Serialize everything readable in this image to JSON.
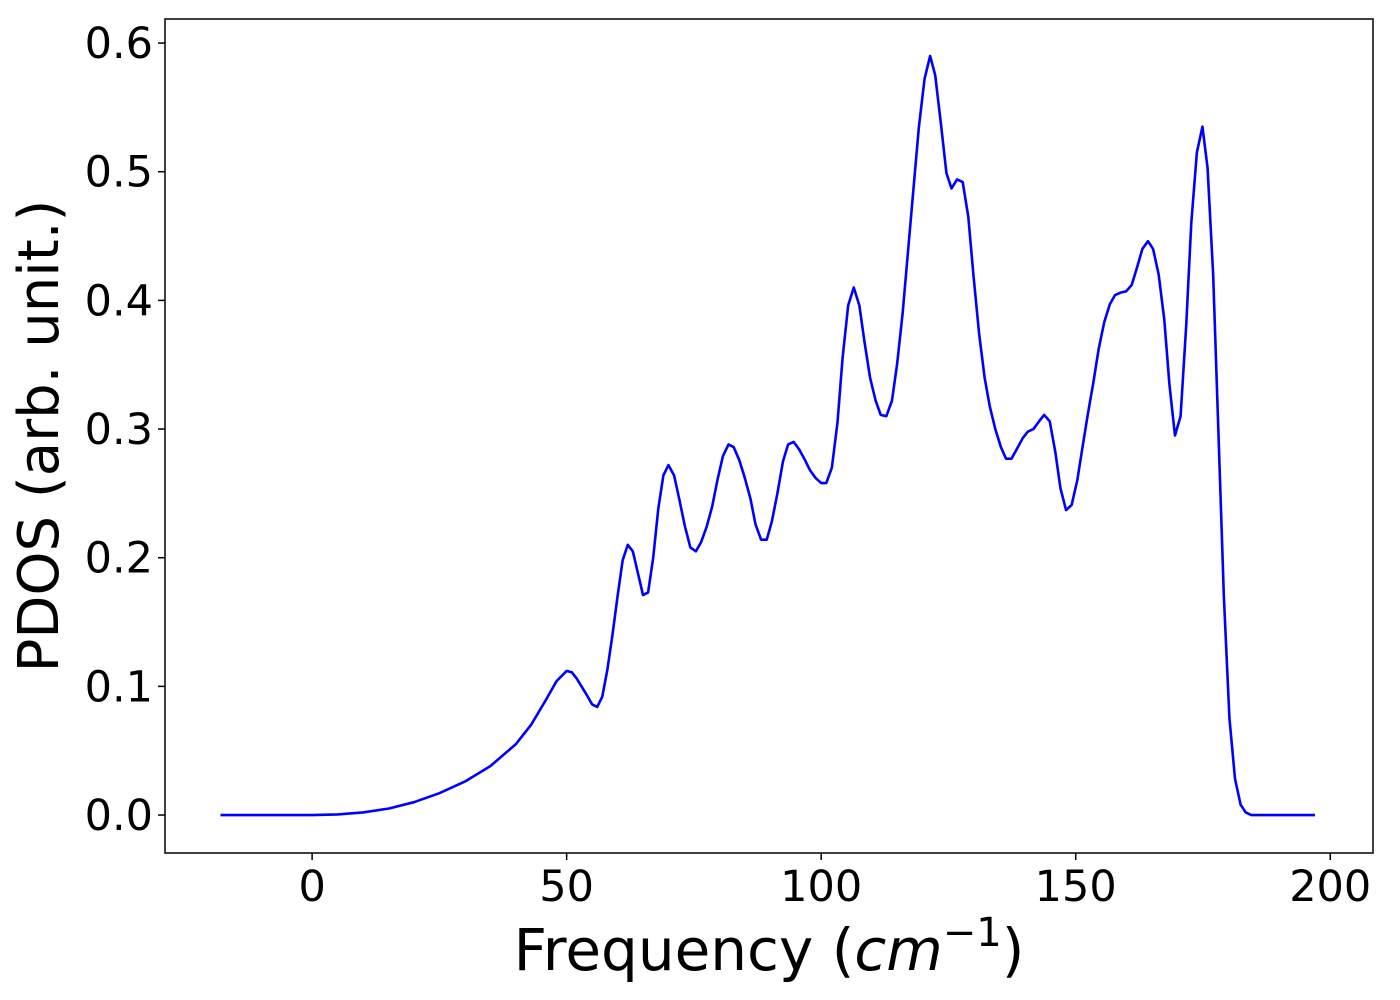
{
  "chart_data": {
    "type": "line",
    "xlabel": {
      "text": "Frequency (",
      "unit": "cm",
      "exponent": "−1",
      "close": ")"
    },
    "ylabel": "PDOS (arb. unit.)",
    "color": "#0000ff",
    "x": [
      -18,
      0,
      5,
      10,
      15,
      20,
      25,
      30,
      35,
      40,
      43,
      46,
      48,
      50,
      51,
      52,
      54,
      55,
      56,
      57,
      58,
      59,
      60,
      61,
      62,
      63,
      64,
      65,
      66,
      67,
      68,
      69,
      70,
      71.1,
      72.1,
      73.2,
      74.3,
      75.4,
      76.4,
      77.5,
      78.6,
      79.6,
      80.7,
      81.8,
      82.8,
      83.9,
      85.0,
      86.1,
      87.1,
      88.2,
      89.3,
      90.3,
      91.4,
      92.5,
      93.5,
      94.6,
      95.7,
      96.8,
      97.8,
      98.9,
      100.0,
      101.0,
      102.1,
      103.2,
      104.2,
      105.3,
      106.4,
      107.5,
      108.5,
      109.6,
      110.7,
      111.7,
      112.8,
      113.9,
      114.9,
      116.0,
      117.1,
      118.2,
      119.2,
      120.3,
      121.4,
      122.4,
      123.5,
      124.6,
      125.6,
      126.7,
      127.8,
      128.9,
      129.9,
      131.0,
      132.1,
      133.1,
      134.2,
      135.3,
      136.3,
      137.4,
      138.5,
      139.6,
      140.6,
      141.7,
      142.8,
      143.8,
      144.9,
      146.0,
      147.0,
      148.1,
      149.2,
      150.3,
      151.3,
      152.4,
      153.5,
      154.5,
      155.6,
      156.7,
      157.7,
      158.8,
      159.9,
      161.0,
      162.0,
      163.1,
      164.2,
      165.2,
      166.3,
      167.4,
      168.4,
      169.5,
      170.6,
      171.7,
      172.7,
      173.8,
      174.9,
      175.9,
      177.0,
      178.1,
      179.1,
      180.2,
      181.3,
      182.4,
      183.4,
      184.5,
      197
    ],
    "values": [
      0,
      0,
      0.0005,
      0.002,
      0.005,
      0.01,
      0.017,
      0.026,
      0.038,
      0.055,
      0.07,
      0.09,
      0.104,
      0.112,
      0.111,
      0.106,
      0.093,
      0.086,
      0.084,
      0.092,
      0.113,
      0.14,
      0.17,
      0.198,
      0.21,
      0.205,
      0.188,
      0.171,
      0.173,
      0.2,
      0.238,
      0.264,
      0.272,
      0.264,
      0.246,
      0.225,
      0.208,
      0.205,
      0.212,
      0.224,
      0.24,
      0.26,
      0.279,
      0.288,
      0.286,
      0.276,
      0.262,
      0.246,
      0.226,
      0.214,
      0.214,
      0.228,
      0.25,
      0.275,
      0.288,
      0.29,
      0.284,
      0.276,
      0.268,
      0.262,
      0.258,
      0.258,
      0.27,
      0.305,
      0.355,
      0.396,
      0.41,
      0.396,
      0.368,
      0.34,
      0.322,
      0.311,
      0.31,
      0.322,
      0.35,
      0.39,
      0.44,
      0.49,
      0.535,
      0.572,
      0.59,
      0.575,
      0.538,
      0.499,
      0.487,
      0.494,
      0.492,
      0.465,
      0.42,
      0.375,
      0.34,
      0.318,
      0.3,
      0.286,
      0.277,
      0.277,
      0.285,
      0.293,
      0.298,
      0.3,
      0.306,
      0.311,
      0.306,
      0.282,
      0.254,
      0.237,
      0.241,
      0.26,
      0.285,
      0.312,
      0.337,
      0.362,
      0.383,
      0.397,
      0.404,
      0.406,
      0.407,
      0.412,
      0.425,
      0.44,
      0.446,
      0.44,
      0.42,
      0.385,
      0.335,
      0.295,
      0.31,
      0.38,
      0.46,
      0.515,
      0.535,
      0.503,
      0.42,
      0.29,
      0.17,
      0.075,
      0.028,
      0.008,
      0.002,
      0,
      0
    ],
    "xlim": [
      -28.9,
      208.4
    ],
    "ylim": [
      -0.0295,
      0.6187
    ],
    "xticks": [
      0,
      50,
      100,
      150,
      200
    ],
    "yticks": [
      {
        "value": 0,
        "label": "0.0"
      },
      0.1,
      0.2,
      0.3,
      0.4,
      0.5,
      0.6
    ]
  }
}
